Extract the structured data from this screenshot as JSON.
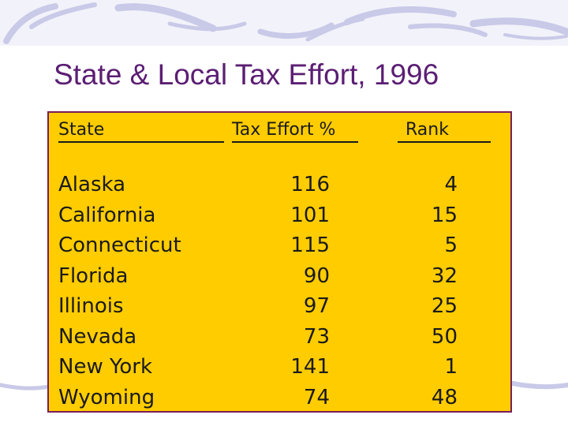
{
  "slide": {
    "title": "State & Local Tax Effort, 1996"
  },
  "table": {
    "headers": {
      "state": "State",
      "effort": "Tax Effort %",
      "rank": "Rank"
    },
    "rows": [
      {
        "state": "Alaska",
        "effort": "116",
        "rank": "4"
      },
      {
        "state": "California",
        "effort": "101",
        "rank": "15"
      },
      {
        "state": "Connecticut",
        "effort": "115",
        "rank": "5"
      },
      {
        "state": "Florida",
        "effort": "90",
        "rank": "32"
      },
      {
        "state": "Illinois",
        "effort": "97",
        "rank": "25"
      },
      {
        "state": "Nevada",
        "effort": "73",
        "rank": "50"
      },
      {
        "state": "New York",
        "effort": "141",
        "rank": "1"
      },
      {
        "state": "Wyoming",
        "effort": "74",
        "rank": "48"
      }
    ]
  },
  "colors": {
    "title": "#5b1e73",
    "panel": "#ffcc00",
    "panel_border": "#7a1d5a",
    "decoration": "#c9c9e8"
  }
}
